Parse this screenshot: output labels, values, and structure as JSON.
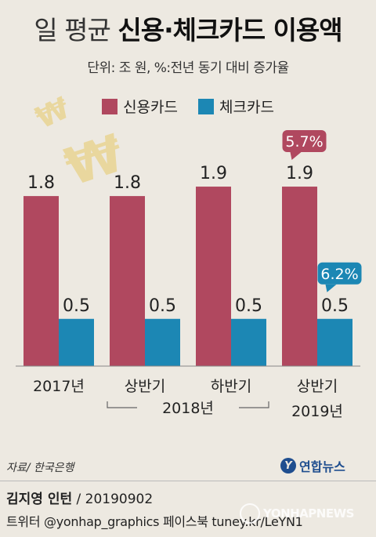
{
  "title": {
    "light": "일 평균 ",
    "bold": "신용·체크카드 이용액"
  },
  "unit_note": "단위: 조 원, %:전년 동기 대비 증가율",
  "legend": [
    {
      "label": "신용카드",
      "color": "#b0485f"
    },
    {
      "label": "체크카드",
      "color": "#1c87b4"
    }
  ],
  "decor": {
    "won_symbol": "₩"
  },
  "chart_data": {
    "type": "bar",
    "categories": [
      "2017년",
      "2018년 상반기",
      "2018년 하반기",
      "2019년 상반기"
    ],
    "category_labels": [
      {
        "line1": "2017년",
        "line2": ""
      },
      {
        "line1": "상반기",
        "line2": ""
      },
      {
        "line1": "하반기",
        "line2": ""
      },
      {
        "line1": "상반기",
        "line2": "2019년"
      }
    ],
    "group_label": "2018년",
    "series": [
      {
        "name": "신용카드",
        "values": [
          1.8,
          1.8,
          1.9,
          1.9
        ],
        "labels": [
          "1.8",
          "1.8",
          "1.9",
          "1.9"
        ],
        "color": "#b0485f"
      },
      {
        "name": "체크카드",
        "values": [
          0.5,
          0.5,
          0.5,
          0.5
        ],
        "labels": [
          "0.5",
          "0.5",
          "0.5",
          "0.5"
        ],
        "color": "#1c87b4"
      }
    ],
    "callouts": [
      {
        "series": 0,
        "category": 3,
        "text": "5.7%",
        "color": "#b0485f"
      },
      {
        "series": 1,
        "category": 3,
        "text": "6.2%",
        "color": "#1c87b4"
      }
    ],
    "ylim": [
      0,
      2.0
    ]
  },
  "source": "자료/ 한국은행",
  "logo": {
    "mark": "Y",
    "text": "연합뉴스"
  },
  "credit": {
    "name": "김지영 인턴",
    "date": " / 20190902",
    "social": "트위터 @yonhap_graphics  페이스북 tuney.kr/LeYN1"
  },
  "watermark": "YONHAPNEWS"
}
